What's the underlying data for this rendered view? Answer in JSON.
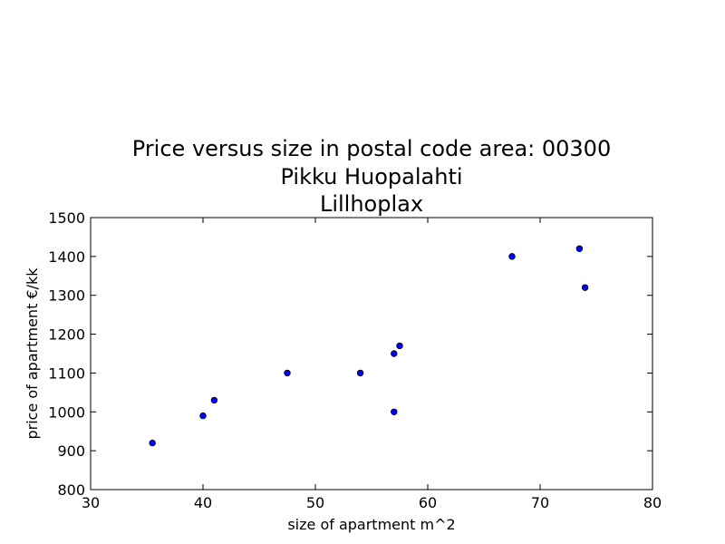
{
  "chart_data": {
    "type": "scatter",
    "title_lines": [
      "Price versus size in postal code area: 00300",
      "Pikku Huopalahti",
      "Lillhoplax"
    ],
    "xlabel": "size of apartment m^2",
    "ylabel": "price of apartment €/kk",
    "xlim": [
      30,
      80
    ],
    "ylim": [
      800,
      1500
    ],
    "xticks": [
      30,
      40,
      50,
      60,
      70,
      80
    ],
    "yticks": [
      800,
      900,
      1000,
      1100,
      1200,
      1300,
      1400,
      1500
    ],
    "point_color": "#0000ff",
    "points": [
      {
        "x": 35.5,
        "y": 920
      },
      {
        "x": 40,
        "y": 990
      },
      {
        "x": 41,
        "y": 1030
      },
      {
        "x": 47.5,
        "y": 1100
      },
      {
        "x": 54,
        "y": 1100
      },
      {
        "x": 57,
        "y": 1150
      },
      {
        "x": 57.5,
        "y": 1170
      },
      {
        "x": 57,
        "y": 1000
      },
      {
        "x": 67.5,
        "y": 1400
      },
      {
        "x": 73.5,
        "y": 1420
      },
      {
        "x": 74,
        "y": 1320
      }
    ]
  }
}
